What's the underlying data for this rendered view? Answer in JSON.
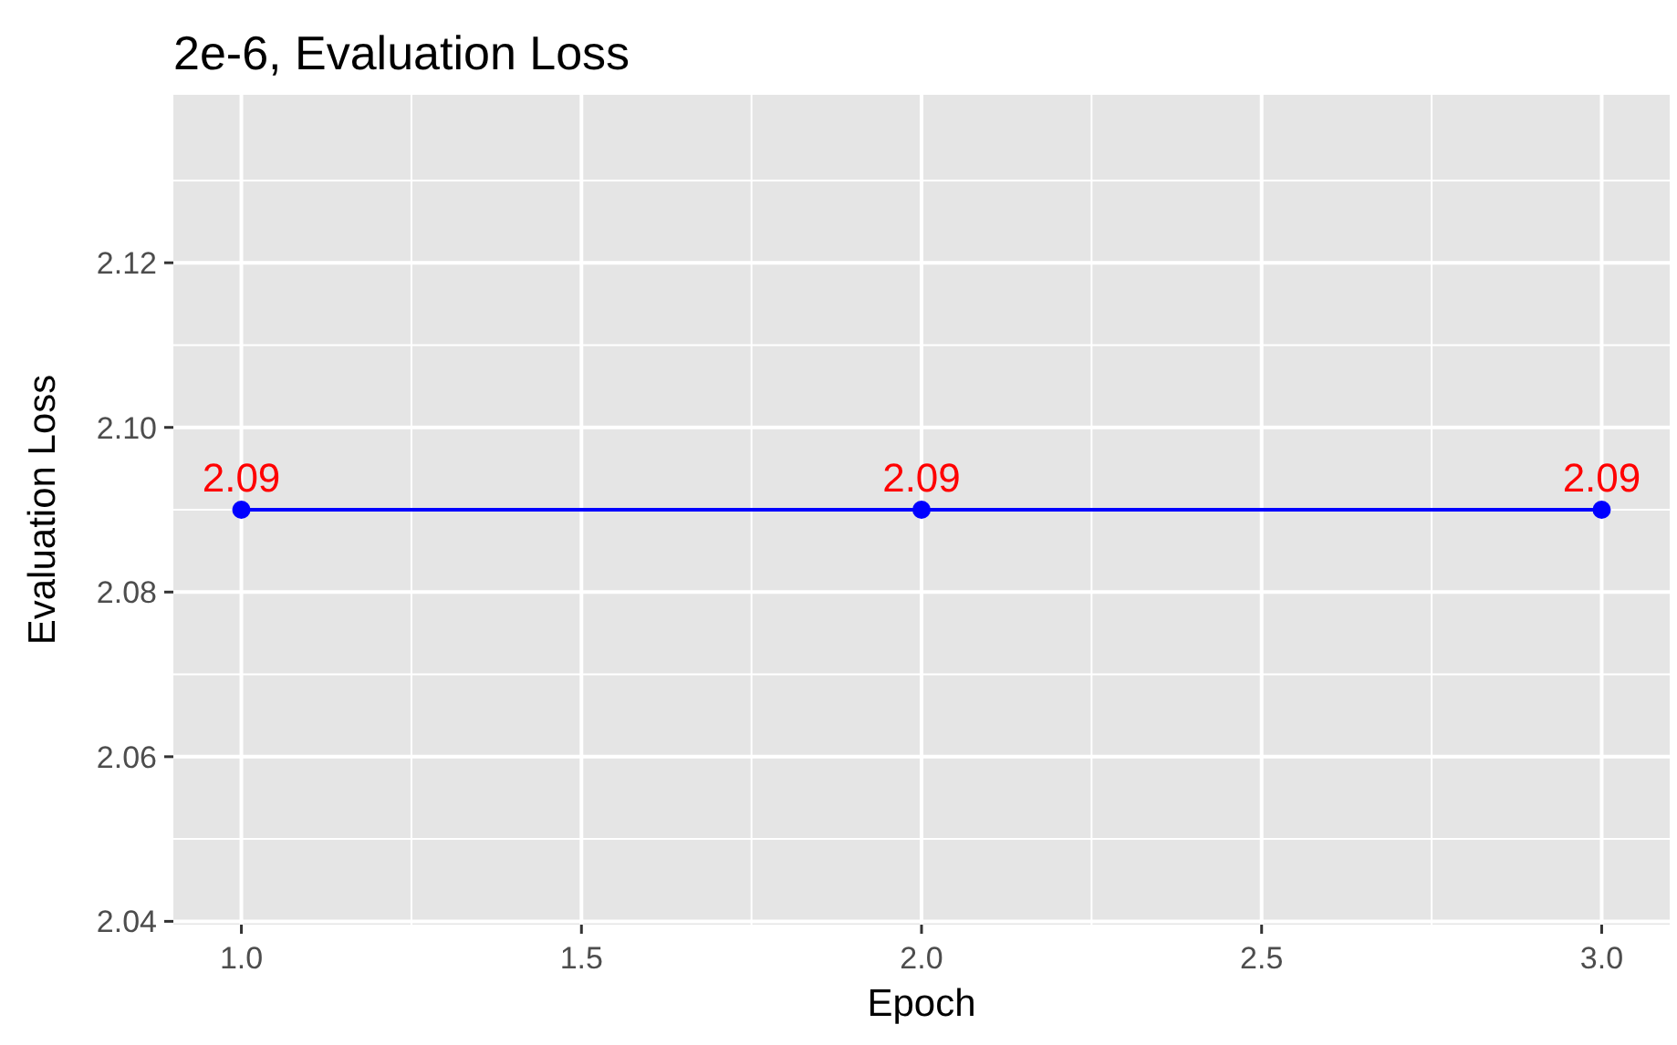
{
  "chart_data": {
    "type": "line",
    "title": "2e-6, Evaluation Loss",
    "xlabel": "Epoch",
    "ylabel": "Evaluation Loss",
    "x": [
      1,
      2,
      3
    ],
    "series": [
      {
        "color": "#0000ff",
        "values": [
          2.09,
          2.09,
          2.09
        ]
      }
    ],
    "xlim": [
      0.9,
      3.1
    ],
    "xticks": [
      {
        "value": 1,
        "label": "1.0"
      },
      {
        "value": 1.5,
        "label": "1.5"
      },
      {
        "value": 2,
        "label": "2.0"
      },
      {
        "value": 2.5,
        "label": "2.5"
      },
      {
        "value": 3,
        "label": "3.0"
      }
    ],
    "ylim": [
      2.0396,
      2.1404
    ],
    "yticks": [
      {
        "value": 2.04,
        "label": "2.04"
      },
      {
        "value": 2.06,
        "label": "2.06"
      },
      {
        "value": 2.08,
        "label": "2.08"
      },
      {
        "value": 2.1,
        "label": "2.10"
      },
      {
        "value": 2.12,
        "label": "2.12"
      }
    ],
    "grid": true,
    "marker": "circle",
    "line_style": "solid",
    "data_labels": true
  }
}
